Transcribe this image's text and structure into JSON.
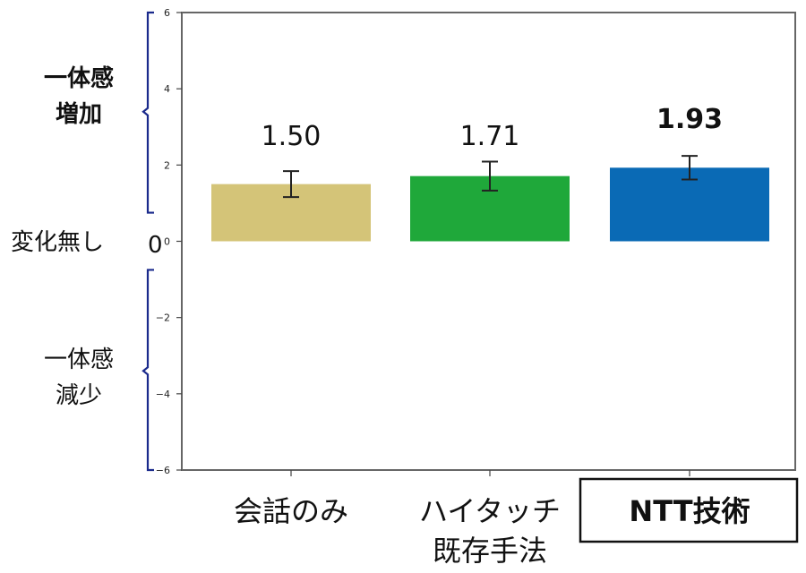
{
  "chart_data": {
    "type": "bar",
    "categories": [
      "会話のみ",
      "ハイタッチ\n既存手法",
      "NTT技術"
    ],
    "values": [
      1.5,
      1.71,
      1.93
    ],
    "error": [
      0.34,
      0.38,
      0.31
    ],
    "value_labels": [
      "1.50",
      "1.71",
      "1.93"
    ],
    "bar_colors": [
      "#d4c478",
      "#1fa83a",
      "#0a6ab5"
    ],
    "ylim": [
      -6,
      6
    ],
    "yticks": [
      -6,
      -4,
      -2,
      0,
      2,
      4,
      6
    ],
    "ytick_labels": [
      "−6",
      "−4",
      "−2",
      "0",
      "2",
      "4",
      "6"
    ],
    "highlight_index": 2,
    "side_labels": {
      "increase": [
        "一体感",
        "増加"
      ],
      "no_change": "変化無し",
      "decrease": [
        "一体感",
        "減少"
      ]
    }
  }
}
